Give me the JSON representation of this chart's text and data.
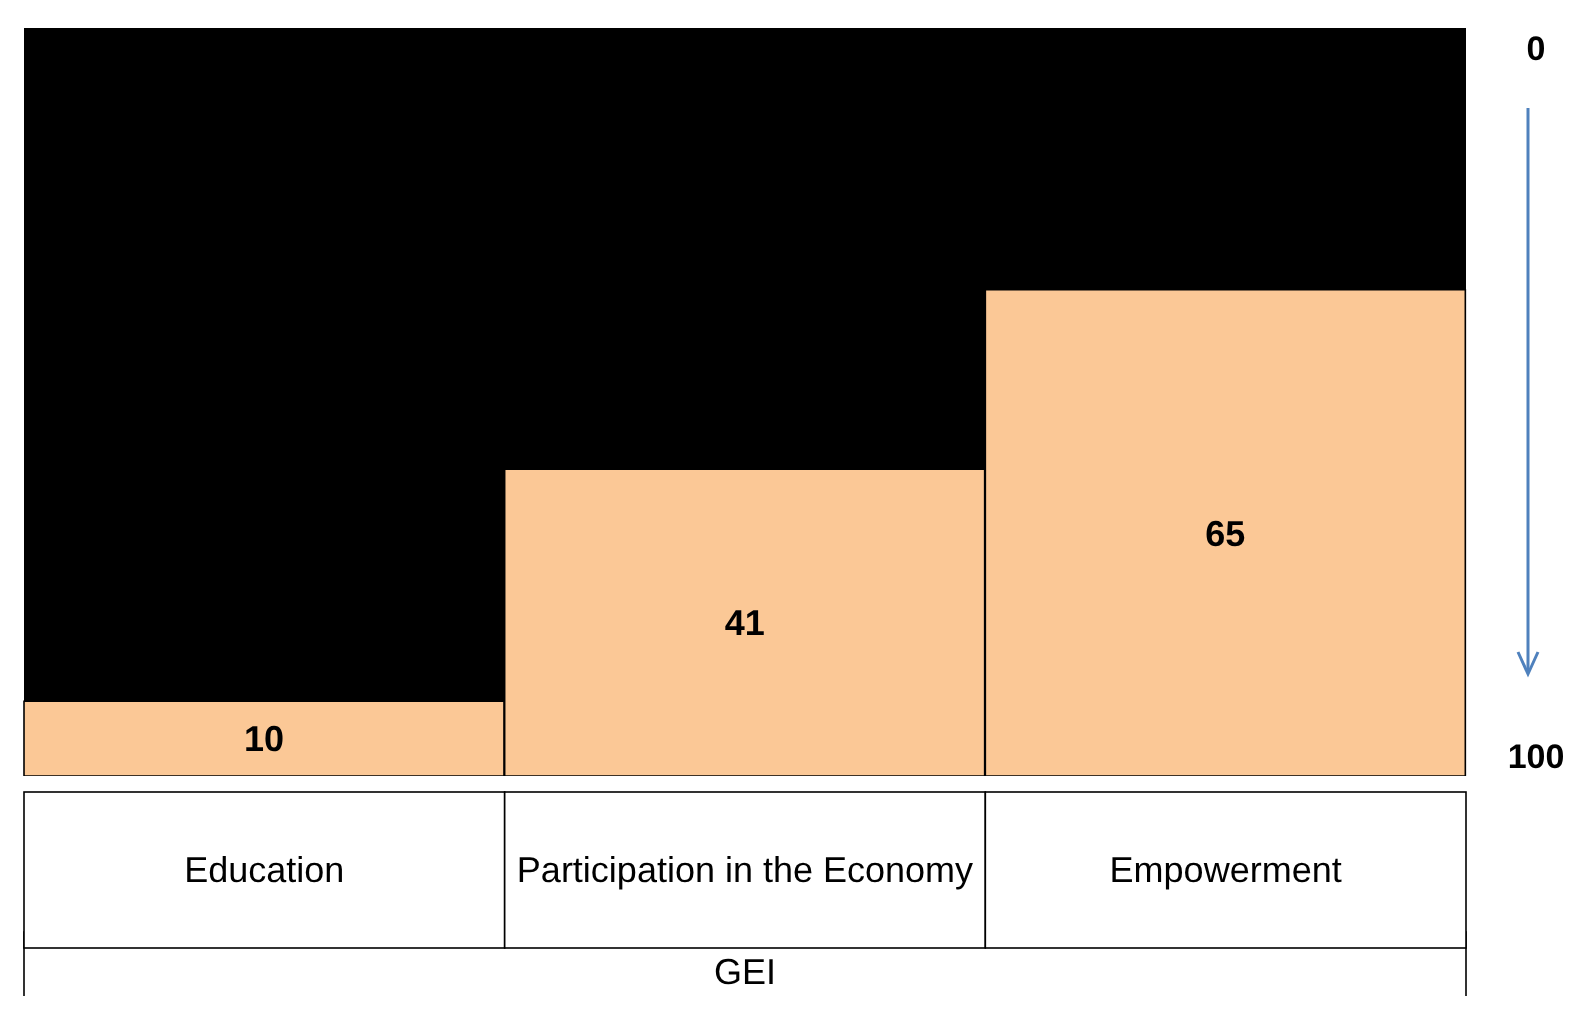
{
  "chart_data": {
    "type": "bar",
    "xlabel": "GEI",
    "categories": [
      "Education",
      "Participation in the Economy",
      "Empowerment"
    ],
    "values": [
      10,
      41,
      65
    ],
    "color": "#fbc896",
    "ylim": [
      0,
      100
    ],
    "data_labels": true,
    "annotations": [
      "0",
      "100"
    ]
  }
}
